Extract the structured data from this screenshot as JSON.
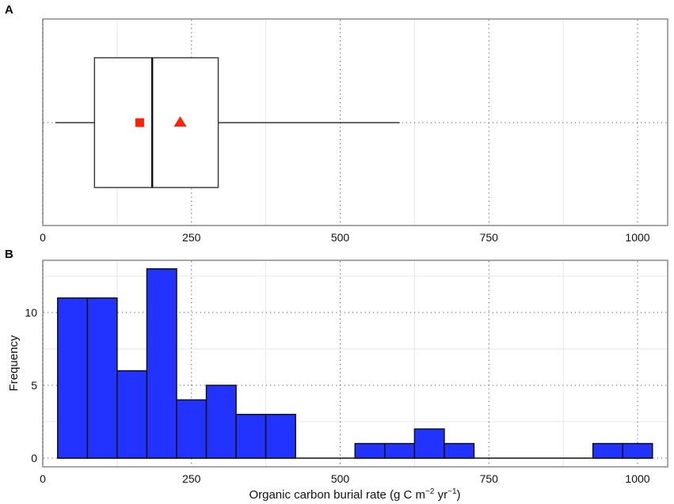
{
  "chart_data": [
    {
      "panel": "A",
      "type": "box",
      "title": "",
      "xlabel": "",
      "ylabel": "",
      "xlim": [
        0,
        1050
      ],
      "xticks": [
        0,
        250,
        500,
        750,
        1000
      ],
      "grid": {
        "major": "dotted",
        "minor": "solid-light"
      },
      "box": {
        "whisker_low": 21,
        "q1": 87,
        "median": 184,
        "q3": 295,
        "whisker_high": 600,
        "mean_marker": {
          "shape": "triangle",
          "value": 231,
          "color": "#ff2200"
        },
        "second_marker": {
          "shape": "square",
          "value": 163,
          "color": "#ff2200"
        }
      }
    },
    {
      "panel": "B",
      "type": "bar",
      "subtype": "histogram",
      "title": "",
      "xlabel": "Organic carbon burial rate (g C m⁻² yr⁻¹)",
      "ylabel": "Frequency",
      "xlim": [
        0,
        1050
      ],
      "ylim": [
        -0.6,
        13.6
      ],
      "xticks": [
        0,
        250,
        500,
        750,
        1000
      ],
      "yticks": [
        0,
        5,
        10
      ],
      "bin_width": 50,
      "bar_color": "#2233ff",
      "categories": [
        "25-75",
        "75-125",
        "125-175",
        "175-225",
        "225-275",
        "275-325",
        "325-375",
        "375-425",
        "425-475",
        "475-525",
        "525-575",
        "575-625",
        "625-675",
        "675-725",
        "725-775",
        "775-825",
        "825-875",
        "875-925",
        "925-975",
        "975-1025"
      ],
      "values": [
        11,
        11,
        6,
        13,
        4,
        5,
        3,
        3,
        0,
        0,
        1,
        1,
        2,
        1,
        0,
        0,
        0,
        0,
        1,
        1
      ]
    }
  ],
  "panels": {
    "a": {
      "label": "A"
    },
    "b": {
      "label": "B",
      "xlabel_main": "Organic carbon burial rate (g C m",
      "xlabel_exp1": "−2",
      "xlabel_mid": " yr",
      "xlabel_exp2": "−1",
      "xlabel_end": ")",
      "ylabel": "Frequency"
    }
  },
  "ticks": {
    "x": [
      "0",
      "250",
      "500",
      "750",
      "1000"
    ],
    "y": [
      "0",
      "5",
      "10"
    ]
  }
}
